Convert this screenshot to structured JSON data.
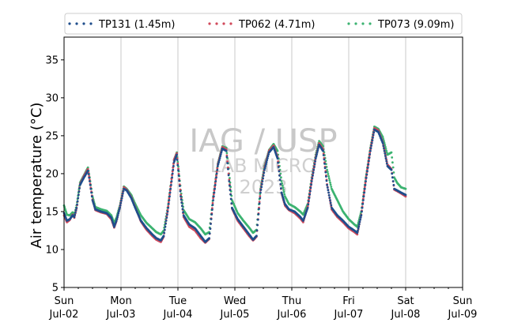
{
  "chart_data": {
    "type": "scatter",
    "title": "",
    "ylabel": "Air temperature (°C)",
    "xlabel": "",
    "ylim": [
      5,
      38
    ],
    "yticks": [
      5,
      10,
      15,
      20,
      25,
      30,
      35
    ],
    "xlim": [
      "2023-07-02 00:00",
      "2023-07-09 00:00"
    ],
    "xticks": [
      {
        "day": "Sun",
        "date": "Jul-02"
      },
      {
        "day": "Mon",
        "date": "Jul-03"
      },
      {
        "day": "Tue",
        "date": "Jul-04"
      },
      {
        "day": "Wed",
        "date": "Jul-05"
      },
      {
        "day": "Thu",
        "date": "Jul-06"
      },
      {
        "day": "Fri",
        "date": "Jul-07"
      },
      {
        "day": "Sat",
        "date": "Jul-08"
      },
      {
        "day": "Sun",
        "date": "Jul-09"
      }
    ],
    "grid": "vertical at day boundaries",
    "legend_placement": "top, above plot",
    "watermark": [
      "IAG / USP",
      "LAB MICRO",
      "2023"
    ],
    "series": [
      {
        "name": "TP131 (1.45m)",
        "color": "#1f4e8c",
        "points": [
          [
            0.0,
            14.8
          ],
          [
            0.05,
            13.8
          ],
          [
            0.1,
            14.0
          ],
          [
            0.15,
            14.5
          ],
          [
            0.18,
            14.3
          ],
          [
            0.22,
            15.5
          ],
          [
            0.28,
            18.5
          ],
          [
            0.35,
            19.5
          ],
          [
            0.42,
            20.4
          ],
          [
            0.45,
            19.0
          ],
          [
            0.5,
            16.5
          ],
          [
            0.55,
            15.3
          ],
          [
            0.65,
            15.0
          ],
          [
            0.75,
            14.8
          ],
          [
            0.83,
            14.2
          ],
          [
            0.88,
            13.0
          ],
          [
            0.92,
            13.8
          ],
          [
            0.98,
            15.5
          ],
          [
            1.05,
            18.0
          ],
          [
            1.1,
            17.8
          ],
          [
            1.18,
            16.8
          ],
          [
            1.25,
            15.5
          ],
          [
            1.35,
            13.8
          ],
          [
            1.45,
            12.8
          ],
          [
            1.55,
            12.0
          ],
          [
            1.62,
            11.5
          ],
          [
            1.7,
            11.2
          ],
          [
            1.75,
            11.8
          ],
          [
            1.82,
            15.0
          ],
          [
            1.88,
            18.5
          ],
          [
            1.93,
            21.5
          ],
          [
            1.98,
            22.5
          ],
          [
            2.05,
            17.0
          ],
          [
            2.1,
            14.5
          ],
          [
            2.2,
            13.3
          ],
          [
            2.3,
            12.8
          ],
          [
            2.4,
            11.8
          ],
          [
            2.48,
            11.0
          ],
          [
            2.55,
            11.5
          ],
          [
            2.62,
            16.5
          ],
          [
            2.7,
            21.0
          ],
          [
            2.78,
            23.3
          ],
          [
            2.85,
            23.0
          ],
          [
            2.9,
            19.0
          ],
          [
            2.95,
            15.5
          ],
          [
            3.05,
            14.0
          ],
          [
            3.15,
            13.0
          ],
          [
            3.25,
            12.0
          ],
          [
            3.32,
            11.3
          ],
          [
            3.38,
            11.8
          ],
          [
            3.45,
            17.5
          ],
          [
            3.52,
            20.5
          ],
          [
            3.6,
            22.8
          ],
          [
            3.68,
            23.5
          ],
          [
            3.75,
            22.0
          ],
          [
            3.82,
            17.5
          ],
          [
            3.88,
            16.0
          ],
          [
            3.95,
            15.3
          ],
          [
            4.05,
            15.0
          ],
          [
            4.15,
            14.3
          ],
          [
            4.2,
            13.8
          ],
          [
            4.28,
            15.5
          ],
          [
            4.35,
            19.0
          ],
          [
            4.42,
            22.0
          ],
          [
            4.48,
            23.8
          ],
          [
            4.55,
            23.0
          ],
          [
            4.62,
            18.5
          ],
          [
            4.7,
            15.5
          ],
          [
            4.8,
            14.5
          ],
          [
            4.9,
            13.8
          ],
          [
            5.0,
            13.0
          ],
          [
            5.1,
            12.5
          ],
          [
            5.15,
            12.2
          ],
          [
            5.22,
            14.5
          ],
          [
            5.3,
            19.0
          ],
          [
            5.38,
            23.0
          ],
          [
            5.45,
            25.8
          ],
          [
            5.52,
            25.5
          ],
          [
            5.6,
            24.0
          ],
          [
            5.68,
            21.0
          ],
          [
            5.75,
            20.5
          ],
          [
            5.8,
            18.0
          ],
          [
            5.85,
            17.8
          ],
          [
            5.92,
            17.5
          ],
          [
            6.0,
            17.2
          ]
        ]
      },
      {
        "name": "TP062 (4.71m)",
        "color": "#d1495b",
        "points": [
          [
            0.0,
            14.5
          ],
          [
            0.05,
            13.6
          ],
          [
            0.1,
            13.9
          ],
          [
            0.15,
            14.6
          ],
          [
            0.18,
            14.2
          ],
          [
            0.22,
            15.4
          ],
          [
            0.28,
            18.6
          ],
          [
            0.35,
            19.7
          ],
          [
            0.42,
            20.6
          ],
          [
            0.45,
            19.2
          ],
          [
            0.5,
            16.6
          ],
          [
            0.55,
            15.2
          ],
          [
            0.65,
            14.9
          ],
          [
            0.75,
            14.7
          ],
          [
            0.83,
            14.0
          ],
          [
            0.88,
            12.9
          ],
          [
            0.92,
            13.7
          ],
          [
            0.98,
            15.6
          ],
          [
            1.05,
            18.2
          ],
          [
            1.1,
            17.9
          ],
          [
            1.18,
            16.9
          ],
          [
            1.25,
            15.6
          ],
          [
            1.35,
            13.7
          ],
          [
            1.45,
            12.6
          ],
          [
            1.55,
            11.8
          ],
          [
            1.62,
            11.3
          ],
          [
            1.7,
            11.0
          ],
          [
            1.75,
            11.7
          ],
          [
            1.82,
            15.2
          ],
          [
            1.88,
            18.8
          ],
          [
            1.93,
            21.8
          ],
          [
            1.98,
            22.7
          ],
          [
            2.05,
            17.2
          ],
          [
            2.1,
            14.3
          ],
          [
            2.2,
            13.0
          ],
          [
            2.3,
            12.5
          ],
          [
            2.4,
            11.5
          ],
          [
            2.48,
            10.9
          ],
          [
            2.55,
            11.4
          ],
          [
            2.62,
            16.8
          ],
          [
            2.7,
            21.2
          ],
          [
            2.78,
            23.5
          ],
          [
            2.85,
            23.2
          ],
          [
            2.9,
            19.2
          ],
          [
            2.95,
            15.4
          ],
          [
            3.05,
            13.8
          ],
          [
            3.15,
            12.8
          ],
          [
            3.25,
            11.8
          ],
          [
            3.32,
            11.2
          ],
          [
            3.38,
            11.7
          ],
          [
            3.45,
            17.8
          ],
          [
            3.52,
            20.8
          ],
          [
            3.6,
            23.0
          ],
          [
            3.68,
            23.7
          ],
          [
            3.75,
            22.2
          ],
          [
            3.82,
            17.4
          ],
          [
            3.88,
            15.8
          ],
          [
            3.95,
            15.2
          ],
          [
            4.05,
            14.8
          ],
          [
            4.15,
            14.1
          ],
          [
            4.2,
            13.6
          ],
          [
            4.28,
            15.7
          ],
          [
            4.35,
            19.2
          ],
          [
            4.42,
            22.2
          ],
          [
            4.48,
            24.0
          ],
          [
            4.55,
            23.2
          ],
          [
            4.62,
            18.6
          ],
          [
            4.7,
            15.3
          ],
          [
            4.8,
            14.3
          ],
          [
            4.9,
            13.6
          ],
          [
            5.0,
            12.8
          ],
          [
            5.1,
            12.3
          ],
          [
            5.15,
            12.0
          ],
          [
            5.22,
            14.6
          ],
          [
            5.3,
            19.3
          ],
          [
            5.38,
            23.2
          ],
          [
            5.45,
            26.0
          ],
          [
            5.52,
            25.7
          ],
          [
            5.6,
            24.1
          ],
          [
            5.68,
            21.2
          ],
          [
            5.75,
            20.6
          ],
          [
            5.8,
            17.9
          ],
          [
            5.85,
            17.7
          ],
          [
            5.92,
            17.4
          ],
          [
            6.0,
            17.0
          ]
        ]
      },
      {
        "name": "TP073 (9.09m)",
        "color": "#3cb371",
        "points": [
          [
            0.0,
            15.8
          ],
          [
            0.05,
            14.6
          ],
          [
            0.1,
            14.5
          ],
          [
            0.15,
            14.9
          ],
          [
            0.18,
            14.6
          ],
          [
            0.22,
            15.8
          ],
          [
            0.28,
            18.8
          ],
          [
            0.35,
            19.8
          ],
          [
            0.42,
            20.8
          ],
          [
            0.45,
            19.5
          ],
          [
            0.5,
            17.0
          ],
          [
            0.55,
            15.6
          ],
          [
            0.65,
            15.3
          ],
          [
            0.75,
            15.1
          ],
          [
            0.83,
            14.5
          ],
          [
            0.88,
            13.5
          ],
          [
            0.92,
            14.2
          ],
          [
            0.98,
            15.8
          ],
          [
            1.05,
            18.3
          ],
          [
            1.1,
            18.0
          ],
          [
            1.18,
            17.2
          ],
          [
            1.25,
            16.0
          ],
          [
            1.35,
            14.5
          ],
          [
            1.45,
            13.5
          ],
          [
            1.55,
            12.8
          ],
          [
            1.62,
            12.3
          ],
          [
            1.7,
            12.0
          ],
          [
            1.75,
            12.5
          ],
          [
            1.82,
            15.5
          ],
          [
            1.88,
            18.9
          ],
          [
            1.93,
            21.8
          ],
          [
            1.98,
            22.8
          ],
          [
            2.05,
            17.8
          ],
          [
            2.1,
            15.2
          ],
          [
            2.2,
            14.0
          ],
          [
            2.3,
            13.6
          ],
          [
            2.4,
            12.8
          ],
          [
            2.48,
            12.0
          ],
          [
            2.55,
            12.3
          ],
          [
            2.62,
            17.0
          ],
          [
            2.7,
            21.3
          ],
          [
            2.78,
            23.6
          ],
          [
            2.85,
            23.4
          ],
          [
            2.9,
            20.0
          ],
          [
            2.95,
            16.5
          ],
          [
            3.05,
            14.8
          ],
          [
            3.15,
            13.8
          ],
          [
            3.25,
            12.9
          ],
          [
            3.32,
            12.2
          ],
          [
            3.38,
            12.6
          ],
          [
            3.45,
            18.0
          ],
          [
            3.52,
            21.0
          ],
          [
            3.6,
            23.1
          ],
          [
            3.68,
            23.9
          ],
          [
            3.75,
            23.0
          ],
          [
            3.82,
            19.0
          ],
          [
            3.88,
            17.0
          ],
          [
            3.95,
            16.0
          ],
          [
            4.05,
            15.6
          ],
          [
            4.15,
            15.0
          ],
          [
            4.2,
            14.6
          ],
          [
            4.28,
            16.0
          ],
          [
            4.35,
            19.5
          ],
          [
            4.42,
            22.5
          ],
          [
            4.48,
            24.3
          ],
          [
            4.55,
            23.6
          ],
          [
            4.62,
            20.5
          ],
          [
            4.7,
            18.0
          ],
          [
            4.8,
            16.5
          ],
          [
            4.9,
            15.0
          ],
          [
            5.0,
            14.0
          ],
          [
            5.1,
            13.3
          ],
          [
            5.15,
            13.0
          ],
          [
            5.22,
            15.0
          ],
          [
            5.3,
            19.5
          ],
          [
            5.38,
            23.4
          ],
          [
            5.45,
            26.2
          ],
          [
            5.52,
            25.9
          ],
          [
            5.6,
            24.8
          ],
          [
            5.68,
            22.5
          ],
          [
            5.75,
            22.8
          ],
          [
            5.8,
            19.5
          ],
          [
            5.85,
            18.8
          ],
          [
            5.92,
            18.2
          ],
          [
            6.0,
            18.0
          ]
        ]
      }
    ]
  }
}
